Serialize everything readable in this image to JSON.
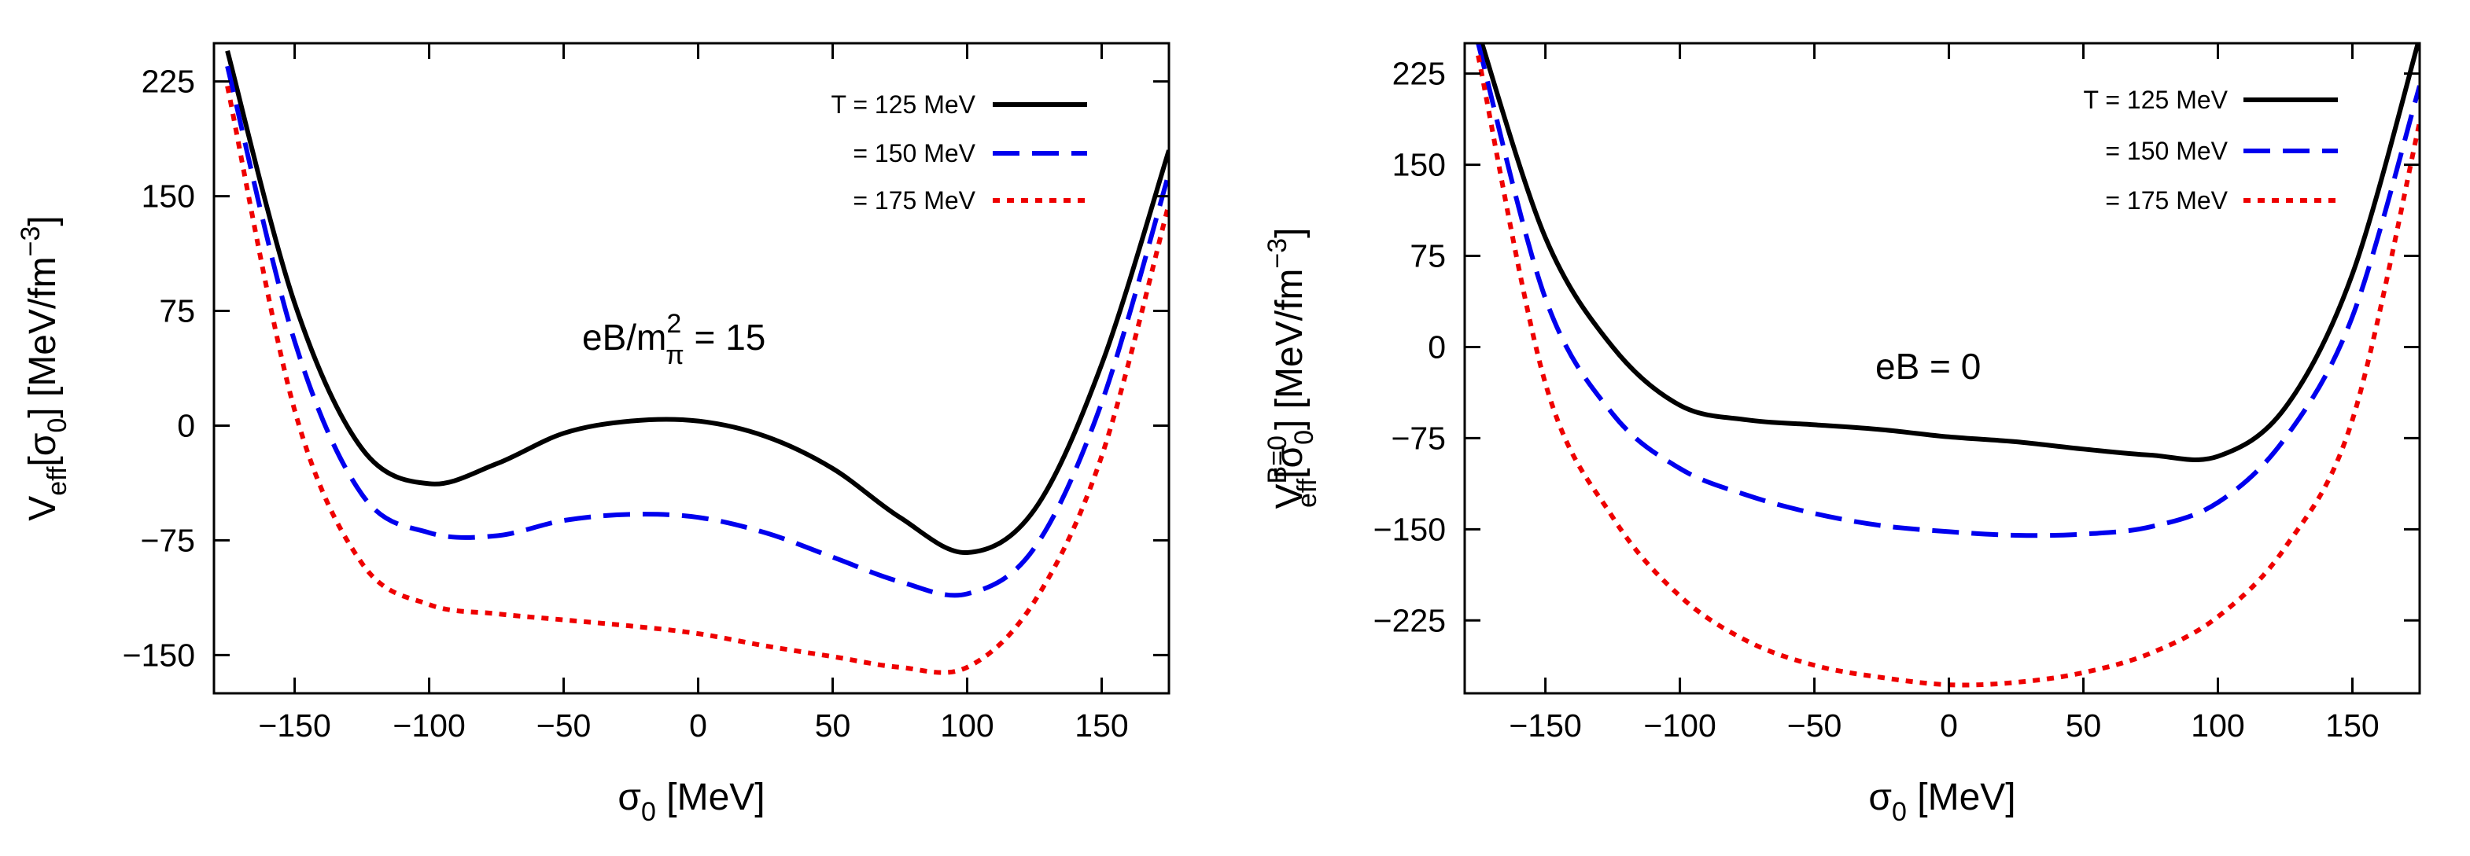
{
  "chart_data": [
    {
      "type": "line",
      "x": [
        -175,
        -150,
        -125,
        -100,
        -75,
        -50,
        -25,
        0,
        25,
        50,
        75,
        100,
        125,
        150,
        175
      ],
      "xlim": [
        -180,
        175
      ],
      "ylim": [
        -175,
        250
      ],
      "xticks": [
        -150,
        -100,
        -50,
        0,
        50,
        100,
        150
      ],
      "yticks": [
        -150,
        -75,
        0,
        75,
        150,
        225
      ],
      "xtick_labels": [
        "−150",
        "−100",
        "−50",
        "0",
        "50",
        "100",
        "150"
      ],
      "ytick_labels": [
        "−150",
        "−75",
        "0",
        "75",
        "150",
        "225"
      ],
      "xlabel": {
        "sym": "σ",
        "sub": "0",
        "unit": " [MeV]"
      },
      "ylabel": {
        "v": "V",
        "vsub": "eff",
        "arg_open": "[σ",
        "arg_sub": "0",
        "arg_close": "] [MeV/fm",
        "exp": "−3",
        "end": "]"
      },
      "annotation": {
        "prefix": "eB/m",
        "sub": "π",
        "sup": "2",
        "suffix": " = 15"
      },
      "series": [
        {
          "name": "T = 125 MeV",
          "color": "#000000",
          "dash": "solid",
          "values": [
            245,
            80,
            -15,
            -38,
            -25,
            -5,
            3,
            3,
            -7,
            -28,
            -60,
            -83,
            -55,
            40,
            180
          ]
        },
        {
          "name": "= 150 MeV",
          "color": "#0000ee",
          "dash": "dashed",
          "values": [
            235,
            55,
            -45,
            -70,
            -72,
            -62,
            -58,
            -60,
            -70,
            -86,
            -102,
            -110,
            -80,
            15,
            165
          ]
        },
        {
          "name": "= 175 MeV",
          "color": "#ee0000",
          "dash": "dotted",
          "values": [
            222,
            10,
            -90,
            -117,
            -123,
            -127,
            -131,
            -136,
            -144,
            -151,
            -158,
            -158,
            -115,
            -20,
            145
          ]
        }
      ]
    },
    {
      "type": "line",
      "x": [
        -175,
        -150,
        -125,
        -100,
        -75,
        -50,
        -25,
        0,
        25,
        50,
        75,
        100,
        125,
        150,
        175
      ],
      "xlim": [
        -180,
        175
      ],
      "ylim": [
        -285,
        250
      ],
      "xticks": [
        -150,
        -100,
        -50,
        0,
        50,
        100,
        150
      ],
      "yticks": [
        -225,
        -150,
        -75,
        0,
        75,
        150,
        225
      ],
      "xtick_labels": [
        "−150",
        "−100",
        "−50",
        "0",
        "50",
        "100",
        "150"
      ],
      "ytick_labels": [
        "−225",
        "−150",
        "−75",
        "0",
        "75",
        "150",
        "225"
      ],
      "xlabel": {
        "sym": "σ",
        "sub": "0",
        "unit": " [MeV]"
      },
      "ylabel": {
        "v": "V",
        "vsub": "eff",
        "vsup": "B=0",
        "arg_open": "[σ",
        "arg_sub": "0",
        "arg_close": "] [MeV/fm",
        "exp": "−3",
        "end": "]"
      },
      "annotation": {
        "text": "eB = 0"
      },
      "series": [
        {
          "name": "T = 125 MeV",
          "color": "#000000",
          "dash": "solid",
          "values": [
            260,
            90,
            0,
            -48,
            -60,
            -64,
            -68,
            -74,
            -78,
            -84,
            -89,
            -90,
            -50,
            60,
            255
          ]
        },
        {
          "name": "= 150 MeV",
          "color": "#0000ee",
          "dash": "dashed",
          "values": [
            250,
            40,
            -55,
            -100,
            -122,
            -137,
            -147,
            -152,
            -155,
            -154,
            -148,
            -128,
            -75,
            25,
            215
          ]
        },
        {
          "name": "= 175 MeV",
          "color": "#ee0000",
          "dash": "dotted",
          "values": [
            240,
            -30,
            -140,
            -205,
            -242,
            -262,
            -272,
            -278,
            -276,
            -268,
            -252,
            -222,
            -165,
            -60,
            185
          ]
        }
      ]
    }
  ]
}
